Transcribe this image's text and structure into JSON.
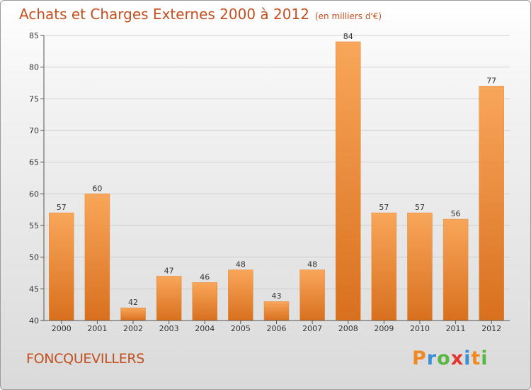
{
  "header": {
    "title": "Achats et Charges Externes 2000 à 2012",
    "subtitle": "(en milliers d'€)"
  },
  "footer": {
    "commune": "FONCQUEVILLERS",
    "logo_text": "Proxiti"
  },
  "colors": {
    "title": "#c44f1f",
    "bar_top": "#f9a65a",
    "bar_bottom": "#d8701e",
    "grid": "#d0d0d0",
    "axis": "#555555",
    "logo": [
      "#f08a24",
      "#3a8fd6",
      "#59b843",
      "#e2372f",
      "#3a8fd6",
      "#f08a24",
      "#59b843"
    ]
  },
  "chart_data": {
    "type": "bar",
    "title": "Achats et Charges Externes 2000 à 2012",
    "subtitle": "(en milliers d'€)",
    "categories": [
      "2000",
      "2001",
      "2002",
      "2003",
      "2004",
      "2005",
      "2006",
      "2007",
      "2008",
      "2009",
      "2010",
      "2011",
      "2012"
    ],
    "values": [
      57,
      60,
      42,
      47,
      46,
      48,
      43,
      48,
      84,
      57,
      57,
      56,
      77
    ],
    "ylim": [
      40,
      85
    ],
    "yticks": [
      40,
      45,
      50,
      55,
      60,
      65,
      70,
      75,
      80,
      85
    ],
    "grid": true,
    "xlabel": "",
    "ylabel": ""
  }
}
